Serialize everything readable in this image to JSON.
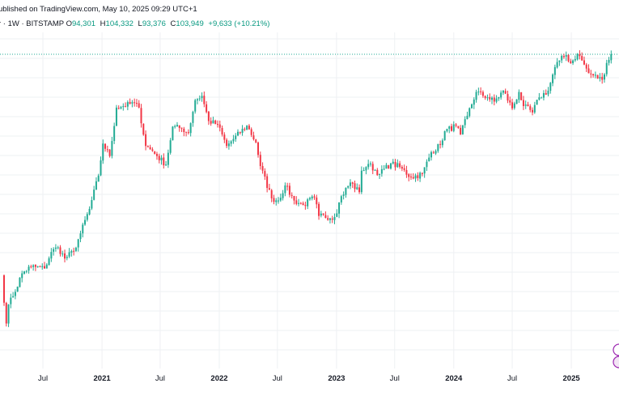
{
  "header": {
    "published": "ublished on TradingView.com, May 10, 2025 09:29 UTC+1",
    "symbol": "r · 1W · BITSTAMP",
    "o_label": "O",
    "o_value": "94,301",
    "h_label": "H",
    "h_value": "104,332",
    "l_label": "L",
    "l_value": "93,376",
    "c_label": "C",
    "c_value": "103,949",
    "change": "+9,633 (+10.21%)"
  },
  "colors": {
    "up": "#22ab94",
    "down": "#f23645",
    "grid": "#eef0f3",
    "dotted_line": "#22ab94",
    "axis_text": "#131722",
    "marker_purple": "#9c27b0"
  },
  "chart_data": {
    "type": "candlestick",
    "timeframe": "weekly",
    "x_tick_labels": [
      "Jul",
      "2021",
      "Jul",
      "2022",
      "Jul",
      "2023",
      "Jul",
      "2024",
      "Jul",
      "2025"
    ],
    "y_scale": "log",
    "current_price_line": 103949,
    "close_path": [
      [
        "2020-02-24",
        8600
      ],
      [
        "2020-03-09",
        5000
      ],
      [
        "2020-03-16",
        6200
      ],
      [
        "2020-03-30",
        6800
      ],
      [
        "2020-04-27",
        8800
      ],
      [
        "2020-05-25",
        9500
      ],
      [
        "2020-07-06",
        9300
      ],
      [
        "2020-07-27",
        11200
      ],
      [
        "2020-08-17",
        11800
      ],
      [
        "2020-09-07",
        10400
      ],
      [
        "2020-10-05",
        11300
      ],
      [
        "2020-10-26",
        13800
      ],
      [
        "2020-11-23",
        18200
      ],
      [
        "2020-12-21",
        26500
      ],
      [
        "2021-01-04",
        38000
      ],
      [
        "2021-01-25",
        33000
      ],
      [
        "2021-02-15",
        57000
      ],
      [
        "2021-03-08",
        58000
      ],
      [
        "2021-04-12",
        60000
      ],
      [
        "2021-04-26",
        57000
      ],
      [
        "2021-05-17",
        37000
      ],
      [
        "2021-06-07",
        35000
      ],
      [
        "2021-06-21",
        33000
      ],
      [
        "2021-07-19",
        30000
      ],
      [
        "2021-08-09",
        46000
      ],
      [
        "2021-09-06",
        45000
      ],
      [
        "2021-09-27",
        43000
      ],
      [
        "2021-10-18",
        62000
      ],
      [
        "2021-11-08",
        65000
      ],
      [
        "2021-11-29",
        49000
      ],
      [
        "2021-12-27",
        47000
      ],
      [
        "2022-01-24",
        37000
      ],
      [
        "2022-02-14",
        40000
      ],
      [
        "2022-03-28",
        46500
      ],
      [
        "2022-04-25",
        38500
      ],
      [
        "2022-05-09",
        29500
      ],
      [
        "2022-06-13",
        20500
      ],
      [
        "2022-07-04",
        20000
      ],
      [
        "2022-07-25",
        23700
      ],
      [
        "2022-08-22",
        20000
      ],
      [
        "2022-09-19",
        19000
      ],
      [
        "2022-10-24",
        20700
      ],
      [
        "2022-11-07",
        16800
      ],
      [
        "2022-12-26",
        16600
      ],
      [
        "2023-01-16",
        21000
      ],
      [
        "2023-02-13",
        24500
      ],
      [
        "2023-03-13",
        22000
      ],
      [
        "2023-03-20",
        28000
      ],
      [
        "2023-04-10",
        30200
      ],
      [
        "2023-05-15",
        27000
      ],
      [
        "2023-06-19",
        30400
      ],
      [
        "2023-07-17",
        29200
      ],
      [
        "2023-08-21",
        26000
      ],
      [
        "2023-09-25",
        27000
      ],
      [
        "2023-10-23",
        34500
      ],
      [
        "2023-11-20",
        37500
      ],
      [
        "2023-12-04",
        43700
      ],
      [
        "2024-01-08",
        46500
      ],
      [
        "2024-01-22",
        42000
      ],
      [
        "2024-02-12",
        52000
      ],
      [
        "2024-03-11",
        68000
      ],
      [
        "2024-04-15",
        64000
      ],
      [
        "2024-05-06",
        61000
      ],
      [
        "2024-06-03",
        69000
      ],
      [
        "2024-07-01",
        56500
      ],
      [
        "2024-07-22",
        68000
      ],
      [
        "2024-08-05",
        58000
      ],
      [
        "2024-09-02",
        54000
      ],
      [
        "2024-09-23",
        64000
      ],
      [
        "2024-10-21",
        69000
      ],
      [
        "2024-11-11",
        90000
      ],
      [
        "2024-11-25",
        97000
      ],
      [
        "2024-12-16",
        103000
      ],
      [
        "2024-12-30",
        94000
      ],
      [
        "2025-01-20",
        104500
      ],
      [
        "2025-02-03",
        97000
      ],
      [
        "2025-02-24",
        84000
      ],
      [
        "2025-03-10",
        82000
      ],
      [
        "2025-04-07",
        78000
      ],
      [
        "2025-04-21",
        94300
      ],
      [
        "2025-05-05",
        103949
      ]
    ],
    "spread_pct": 0.045
  }
}
